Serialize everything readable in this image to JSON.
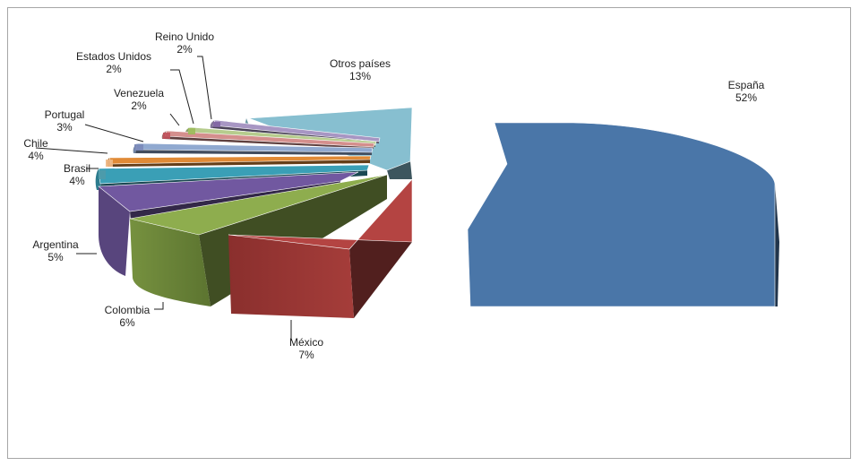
{
  "chart_data": {
    "type": "pie",
    "style": "3d-exploded",
    "categories": [
      "España",
      "México",
      "Colombia",
      "Argentina",
      "Brasil",
      "Chile",
      "Portugal",
      "Venezuela",
      "Estados Unidos",
      "Reino Unido",
      "Otros países"
    ],
    "values": [
      52,
      7,
      6,
      5,
      4,
      4,
      3,
      2,
      2,
      2,
      13
    ],
    "value_labels": [
      "52%",
      "7%",
      "6%",
      "5%",
      "4%",
      "4%",
      "3%",
      "2%",
      "2%",
      "2%",
      "13%"
    ],
    "colors": [
      "#4a76a8",
      "#b44442",
      "#8ead4e",
      "#7158a0",
      "#3a9fb6",
      "#e08a36",
      "#90a9d0",
      "#d48f8d",
      "#b6cc8d",
      "#a796c3",
      "#87bfd0"
    ],
    "extra_slice_colors": [
      "#4f9aaa",
      "#f0b884",
      "#7a88b8",
      "#c0505a",
      "#9bbb59",
      "#8064a2"
    ],
    "title": "",
    "legend": "none",
    "label_position": "outside-with-leader-lines"
  }
}
